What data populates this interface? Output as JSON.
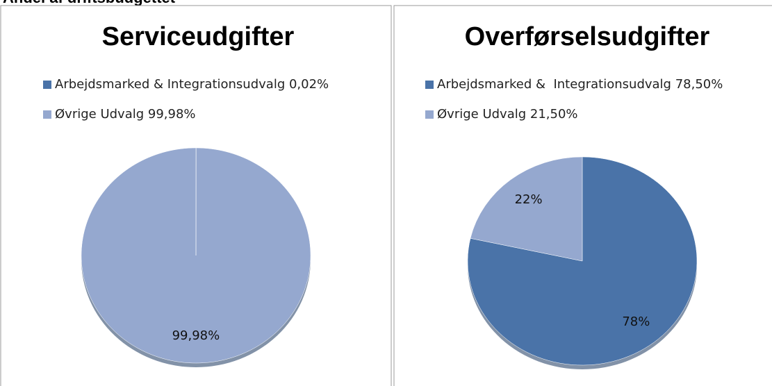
{
  "header": {
    "title": "Andel af driftsbudgettet"
  },
  "chart_data": [
    {
      "type": "pie",
      "title": "Serviceudgifter",
      "categories": [
        "Arbejdsmarked & Integrationsudvalg 0,02%",
        "Øvrige Udvalg 99,98%"
      ],
      "values": [
        0.02,
        99.98
      ],
      "value_labels": [
        "0,02%",
        "99,98%"
      ],
      "colors": [
        "#4a73a8",
        "#95a8cf"
      ]
    },
    {
      "type": "pie",
      "title": "Overførselsudgifter",
      "categories": [
        "Arbejdsmarked &  Integrationsudvalg 78,50%",
        "Øvrige Udvalg 21,50%"
      ],
      "values": [
        78.5,
        21.5
      ],
      "value_labels": [
        "78%",
        "22%"
      ],
      "colors": [
        "#4a73a8",
        "#95a8cf"
      ]
    }
  ]
}
